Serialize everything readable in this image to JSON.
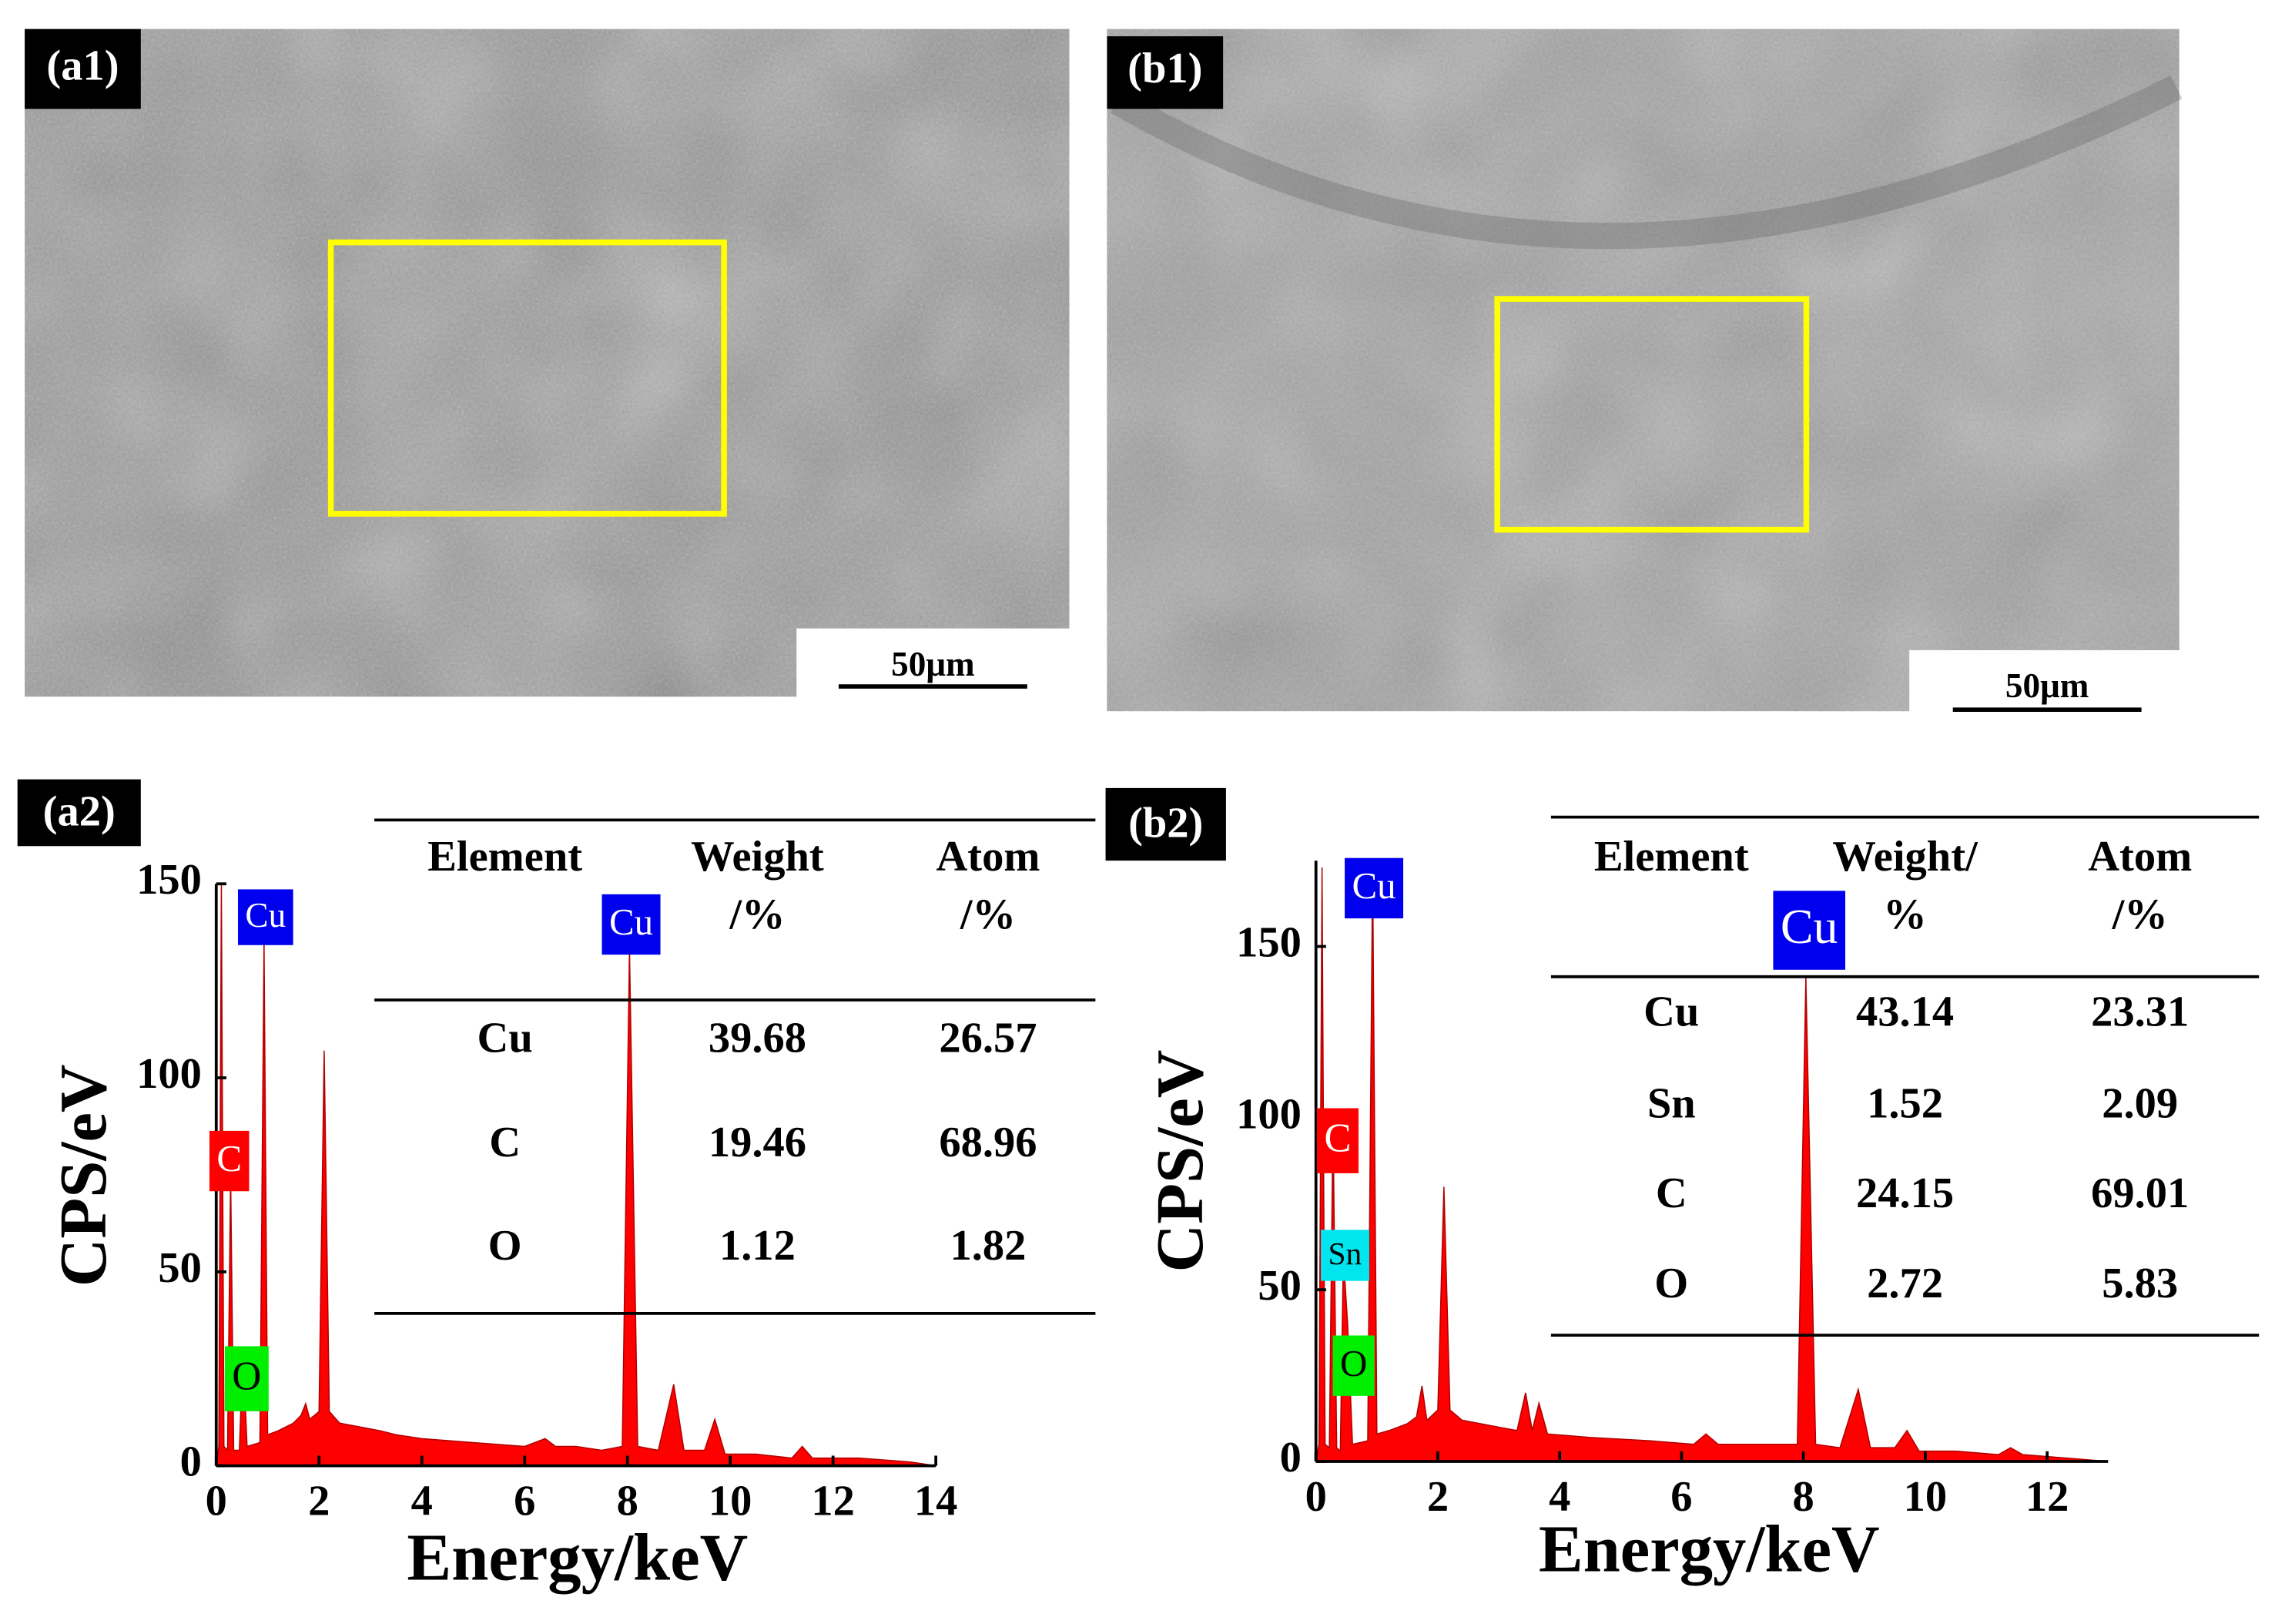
{
  "panels": [
    {
      "label": "(a1)",
      "scale_bar": "50μm"
    },
    {
      "label": "(b1)",
      "scale_bar": "50μm"
    }
  ],
  "chart_data": [
    {
      "type": "area",
      "panel_label": "(a2)",
      "x_label": "Energy/keV",
      "y_label": "CPS/eV",
      "x": [
        0,
        0.05,
        0.1,
        0.15,
        0.22,
        0.28,
        0.34,
        0.45,
        0.52,
        0.6,
        0.85,
        0.93,
        1.0,
        1.2,
        1.5,
        1.65,
        1.74,
        1.82,
        2.0,
        2.1,
        2.2,
        2.4,
        2.8,
        3.2,
        3.5,
        4.0,
        5.0,
        6.0,
        6.4,
        6.6,
        7.0,
        7.5,
        7.9,
        8.04,
        8.2,
        8.6,
        8.9,
        9.1,
        9.5,
        9.7,
        9.9,
        10.5,
        11.2,
        11.4,
        11.6,
        12.5,
        13.5,
        14
      ],
      "values": [
        0,
        5,
        150,
        5,
        4,
        75,
        4,
        4,
        30,
        5,
        6,
        135,
        8,
        9,
        11,
        13,
        16,
        12,
        14,
        107,
        14,
        11,
        10,
        9,
        8,
        7,
        6,
        5,
        7,
        5,
        5,
        4,
        5,
        133,
        5,
        4,
        21,
        4,
        4,
        12,
        3,
        3,
        2,
        5,
        2,
        2,
        1,
        0
      ],
      "color": "#ff0000",
      "xlim": [
        0,
        14
      ],
      "ylim": [
        0,
        150
      ],
      "xticks": [
        0,
        2,
        4,
        6,
        8,
        10,
        12,
        14
      ],
      "yticks": [
        0,
        50,
        100,
        150
      ],
      "peak_labels": [
        {
          "text": "Cu",
          "color": "#0000ee"
        },
        {
          "text": "C",
          "color": "#ff0000"
        },
        {
          "text": "O",
          "color": "#00ee00"
        },
        {
          "text": "Cu",
          "color": "#0000ee"
        }
      ],
      "table": {
        "header": [
          [
            "Element"
          ],
          [
            "Weight",
            "/%"
          ],
          [
            "Atom",
            "/%"
          ]
        ],
        "rows": [
          [
            "Cu",
            "39.68",
            "26.57"
          ],
          [
            "C",
            "19.46",
            "68.96"
          ],
          [
            "O",
            "1.12",
            "1.82"
          ]
        ]
      }
    },
    {
      "type": "area",
      "panel_label": "(b2)",
      "x_label": "Energy/keV",
      "y_label": "CPS/eV",
      "x": [
        0,
        0.05,
        0.1,
        0.15,
        0.22,
        0.28,
        0.34,
        0.4,
        0.45,
        0.52,
        0.6,
        0.85,
        0.93,
        1.0,
        1.2,
        1.5,
        1.65,
        1.74,
        1.82,
        2.0,
        2.1,
        2.2,
        2.4,
        2.7,
        3.0,
        3.3,
        3.44,
        3.55,
        3.66,
        3.8,
        4.5,
        5.5,
        6.2,
        6.4,
        6.6,
        7.0,
        7.9,
        8.04,
        8.2,
        8.6,
        8.9,
        9.1,
        9.5,
        9.7,
        9.9,
        10.5,
        11.2,
        11.4,
        11.6,
        12.3,
        13
      ],
      "values": [
        0,
        5,
        173,
        5,
        4,
        100,
        4,
        3,
        60,
        40,
        5,
        6,
        173,
        8,
        9,
        11,
        13,
        22,
        12,
        15,
        80,
        15,
        12,
        11,
        10,
        9,
        20,
        9,
        17,
        8,
        7,
        6,
        5,
        8,
        5,
        5,
        5,
        141,
        5,
        4,
        21,
        4,
        4,
        9,
        3,
        3,
        2,
        4,
        2,
        1,
        0
      ],
      "color": "#ff0000",
      "xlim": [
        0,
        13
      ],
      "ylim": [
        0,
        175
      ],
      "xticks": [
        0,
        2,
        4,
        6,
        8,
        10,
        12
      ],
      "yticks": [
        0,
        50,
        100,
        150
      ],
      "peak_labels": [
        {
          "text": "Cu",
          "color": "#0000ee"
        },
        {
          "text": "C",
          "color": "#ff0000"
        },
        {
          "text": "Sn",
          "color": "#00e5ee"
        },
        {
          "text": "O",
          "color": "#00ee00"
        },
        {
          "text": "Cu",
          "color": "#0000ee"
        }
      ],
      "table": {
        "header": [
          [
            "Element"
          ],
          [
            "Weight/",
            "%"
          ],
          [
            "Atom",
            "/%"
          ]
        ],
        "rows": [
          [
            "Cu",
            "43.14",
            "23.31"
          ],
          [
            "Sn",
            "1.52",
            "2.09"
          ],
          [
            "C",
            "24.15",
            "69.01"
          ],
          [
            "O",
            "2.72",
            "5.83"
          ]
        ]
      }
    }
  ]
}
